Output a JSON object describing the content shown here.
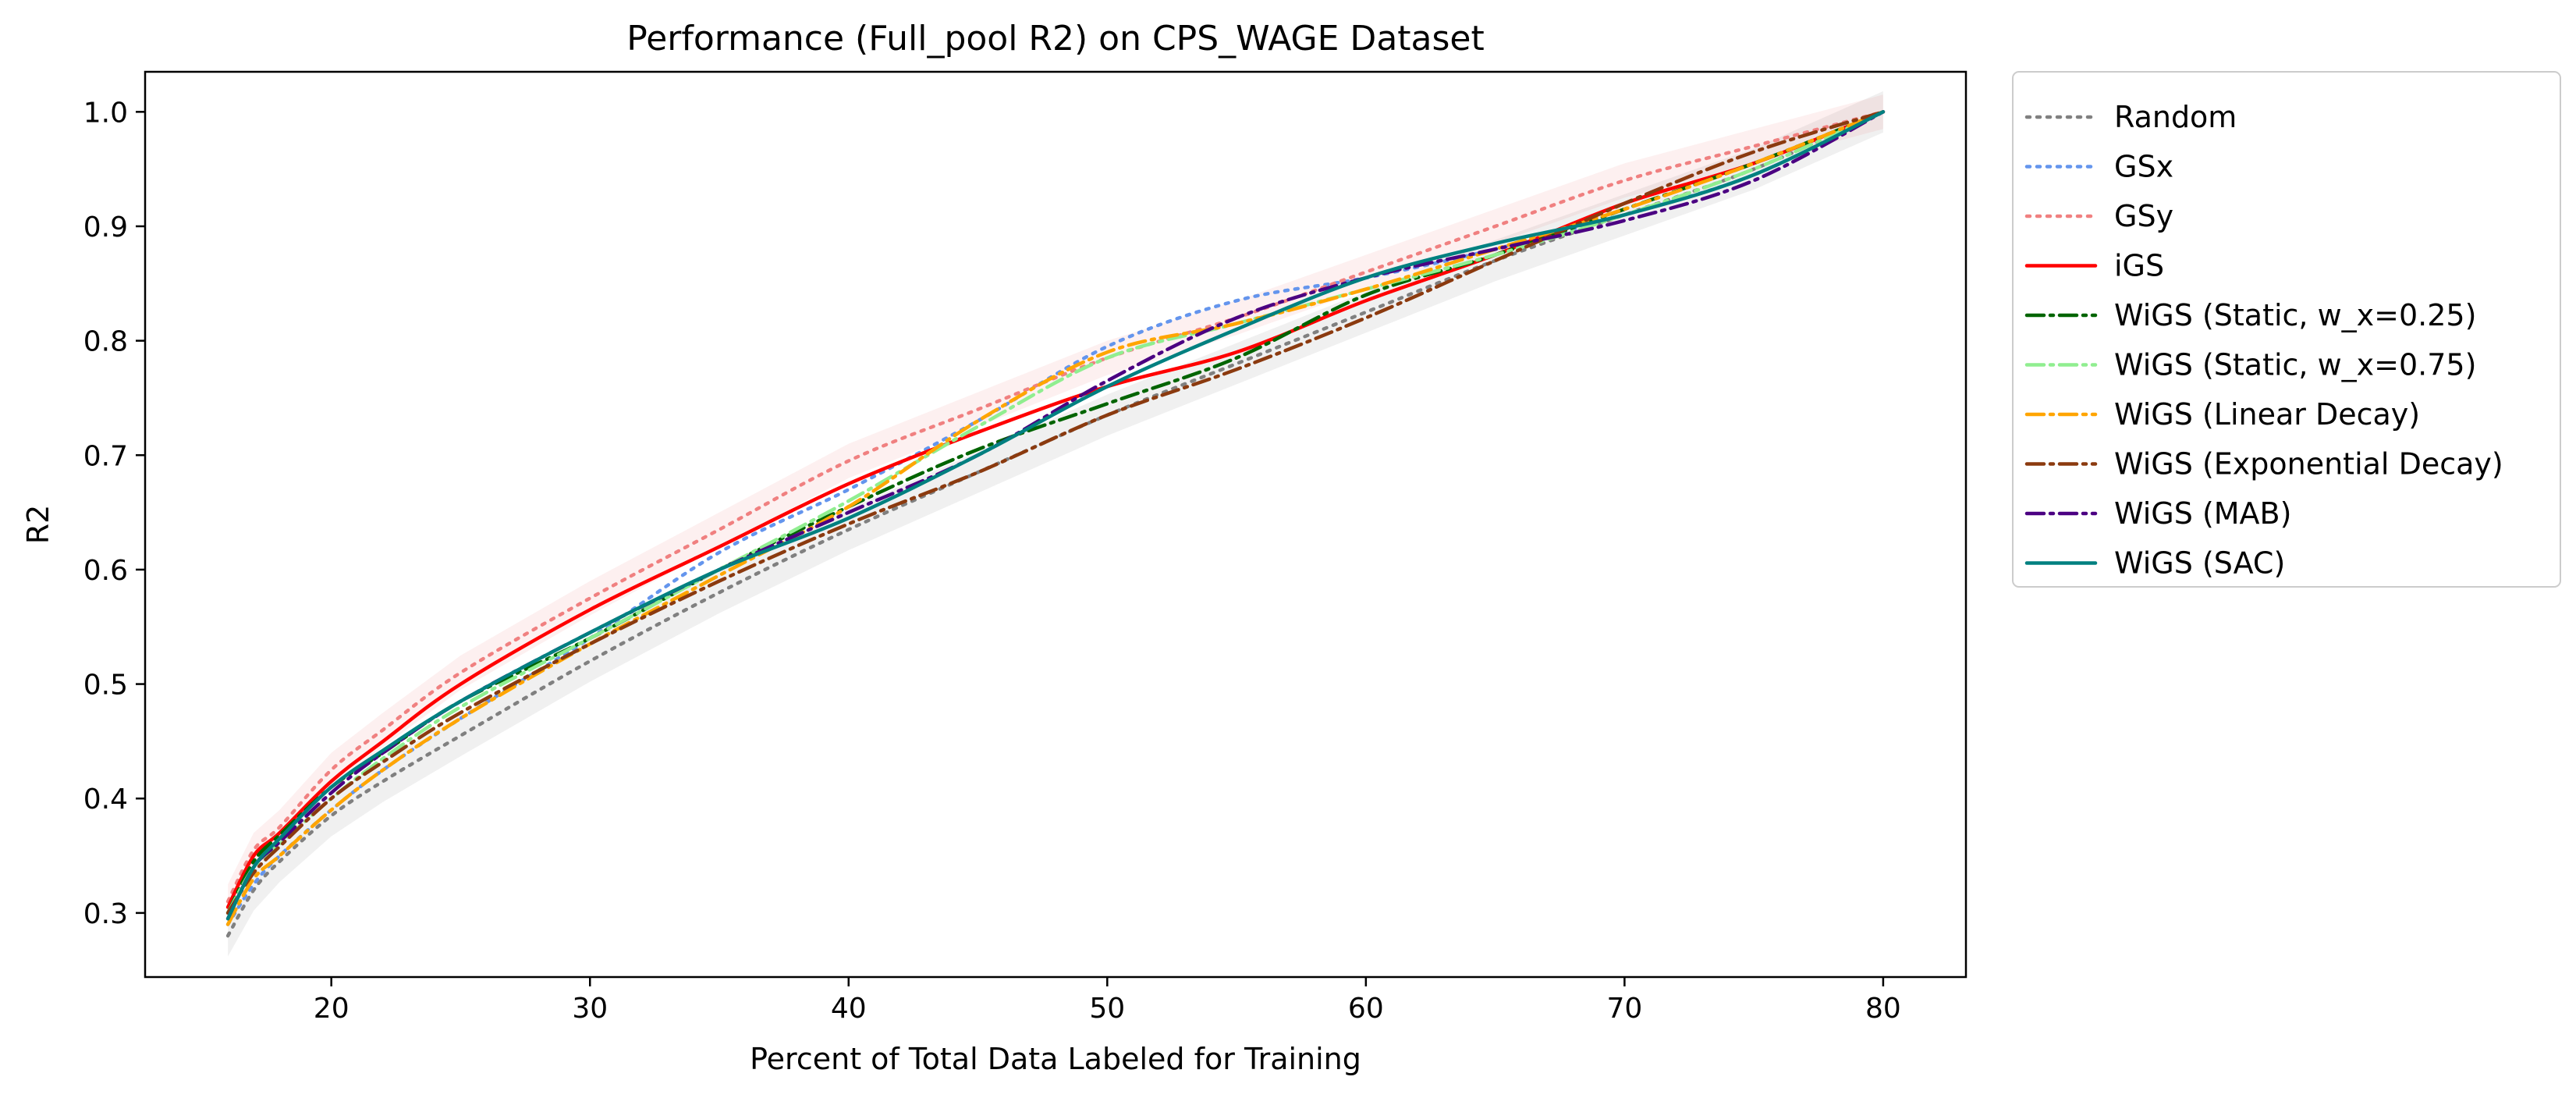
{
  "chart_data": {
    "type": "line",
    "title": "Performance (Full_pool R2) on CPS_WAGE Dataset",
    "xlabel": "Percent of Total Data Labeled for Training",
    "ylabel": "R2",
    "xlim": [
      12.8,
      83.2
    ],
    "ylim": [
      0.244,
      1.035
    ],
    "xticks": [
      20,
      30,
      40,
      50,
      60,
      70,
      80
    ],
    "yticks": [
      0.3,
      0.4,
      0.5,
      0.6,
      0.7,
      0.8,
      0.9,
      1.0
    ],
    "grid": false,
    "legend_position": "outside-right",
    "x": [
      16,
      17,
      18,
      20,
      22,
      25,
      30,
      35,
      40,
      45,
      50,
      55,
      60,
      65,
      70,
      75,
      80
    ],
    "series": [
      {
        "name": "Random",
        "color": "#808080",
        "dash": "dotted",
        "band": 0.018,
        "values": [
          0.28,
          0.32,
          0.345,
          0.385,
          0.415,
          0.455,
          0.52,
          0.58,
          0.635,
          0.685,
          0.735,
          0.78,
          0.825,
          0.87,
          0.91,
          0.95,
          1.0
        ]
      },
      {
        "name": "GSx",
        "color": "#6495ED",
        "dash": "dotted",
        "band": 0.0,
        "values": [
          0.29,
          0.325,
          0.35,
          0.39,
          0.425,
          0.47,
          0.54,
          0.615,
          0.67,
          0.73,
          0.795,
          0.835,
          0.855,
          0.88,
          0.91,
          0.945,
          1.0
        ]
      },
      {
        "name": "GSy",
        "color": "#F08080",
        "dash": "dotted",
        "band": 0.015,
        "values": [
          0.31,
          0.355,
          0.375,
          0.425,
          0.46,
          0.51,
          0.575,
          0.635,
          0.695,
          0.74,
          0.785,
          0.82,
          0.86,
          0.9,
          0.94,
          0.97,
          1.0
        ]
      },
      {
        "name": "iGS",
        "color": "#FF0000",
        "dash": "solid",
        "band": 0.0,
        "values": [
          0.305,
          0.35,
          0.37,
          0.415,
          0.45,
          0.5,
          0.565,
          0.62,
          0.675,
          0.72,
          0.76,
          0.79,
          0.835,
          0.875,
          0.92,
          0.955,
          1.0
        ]
      },
      {
        "name": "WiGS (Static, w_x=0.25)",
        "color": "#006400",
        "dash": "dashdot",
        "band": 0.0,
        "values": [
          0.3,
          0.345,
          0.368,
          0.41,
          0.44,
          0.485,
          0.54,
          0.6,
          0.655,
          0.705,
          0.745,
          0.785,
          0.84,
          0.875,
          0.915,
          0.955,
          1.0
        ]
      },
      {
        "name": "WiGS (Static, w_x=0.75)",
        "color": "#90EE90",
        "dash": "dashdot",
        "band": 0.0,
        "values": [
          0.3,
          0.34,
          0.36,
          0.4,
          0.435,
          0.48,
          0.54,
          0.6,
          0.66,
          0.725,
          0.785,
          0.815,
          0.845,
          0.875,
          0.91,
          0.95,
          1.0
        ]
      },
      {
        "name": "WiGS (Linear Decay)",
        "color": "#FFA500",
        "dash": "dashdot",
        "band": 0.0,
        "values": [
          0.29,
          0.33,
          0.35,
          0.39,
          0.425,
          0.47,
          0.535,
          0.595,
          0.655,
          0.73,
          0.79,
          0.815,
          0.845,
          0.88,
          0.915,
          0.955,
          1.0
        ]
      },
      {
        "name": "WiGS (Exponential Decay)",
        "color": "#8B3A0F",
        "dash": "dashdot",
        "band": 0.0,
        "values": [
          0.3,
          0.335,
          0.358,
          0.4,
          0.432,
          0.475,
          0.535,
          0.59,
          0.64,
          0.685,
          0.735,
          0.775,
          0.82,
          0.87,
          0.92,
          0.965,
          1.0
        ]
      },
      {
        "name": "WiGS (MAB)",
        "color": "#4B0082",
        "dash": "dashdot",
        "band": 0.0,
        "values": [
          0.295,
          0.34,
          0.362,
          0.405,
          0.44,
          0.485,
          0.545,
          0.6,
          0.65,
          0.7,
          0.765,
          0.82,
          0.855,
          0.88,
          0.905,
          0.94,
          1.0
        ]
      },
      {
        "name": "WiGS (SAC)",
        "color": "#008080",
        "dash": "solid",
        "band": 0.0,
        "values": [
          0.295,
          0.34,
          0.365,
          0.41,
          0.442,
          0.485,
          0.545,
          0.6,
          0.645,
          0.7,
          0.76,
          0.81,
          0.855,
          0.885,
          0.91,
          0.945,
          1.0
        ]
      }
    ]
  }
}
